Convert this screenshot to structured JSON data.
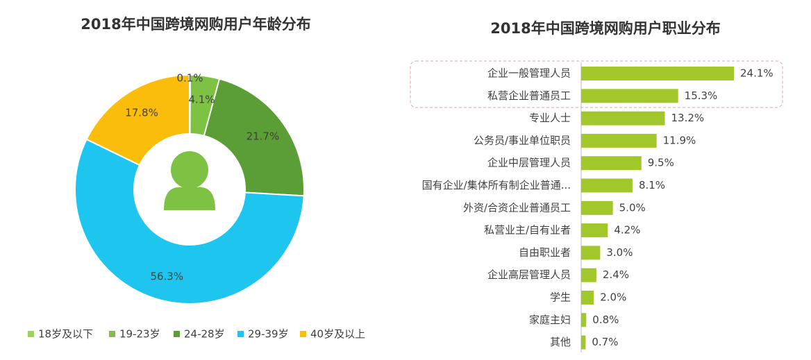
{
  "chart_data": [
    {
      "type": "donut",
      "title": "2018年中国跨境网购用户年龄分布",
      "categories": [
        "18岁及以下",
        "19-23岁",
        "24-28岁",
        "29-39岁",
        "40岁及以上"
      ],
      "values": [
        0.1,
        4.1,
        21.7,
        56.3,
        17.8
      ],
      "value_labels": [
        "0.1%",
        "4.1%",
        "21.7%",
        "56.3%",
        "17.8%"
      ],
      "colors": [
        "#9fd356",
        "#7dc242",
        "#5c9e36",
        "#1ec6ef",
        "#fbbd0b"
      ]
    },
    {
      "type": "hbar",
      "title": "2018年中国跨境网购用户职业分布",
      "categories": [
        "企业一般管理人员",
        "私营企业普通员工",
        "专业人士",
        "公务员/事业单位职员",
        "企业中层管理人员",
        "国有企业/集体所有制企业普通...",
        "外资/合资企业普通员工",
        "私营业主/自有业者",
        "自由职业者",
        "企业高层管理人员",
        "学生",
        "家庭主妇",
        "其他"
      ],
      "values": [
        24.1,
        15.3,
        13.2,
        11.9,
        9.5,
        8.1,
        5.0,
        4.2,
        3.0,
        2.4,
        2.0,
        0.8,
        0.7
      ],
      "value_labels": [
        "24.1%",
        "15.3%",
        "13.2%",
        "11.9%",
        "9.5%",
        "8.1%",
        "5.0%",
        "4.2%",
        "3.0%",
        "2.4%",
        "2.0%",
        "0.8%",
        "0.7%"
      ],
      "color": "#a2c72a"
    }
  ]
}
